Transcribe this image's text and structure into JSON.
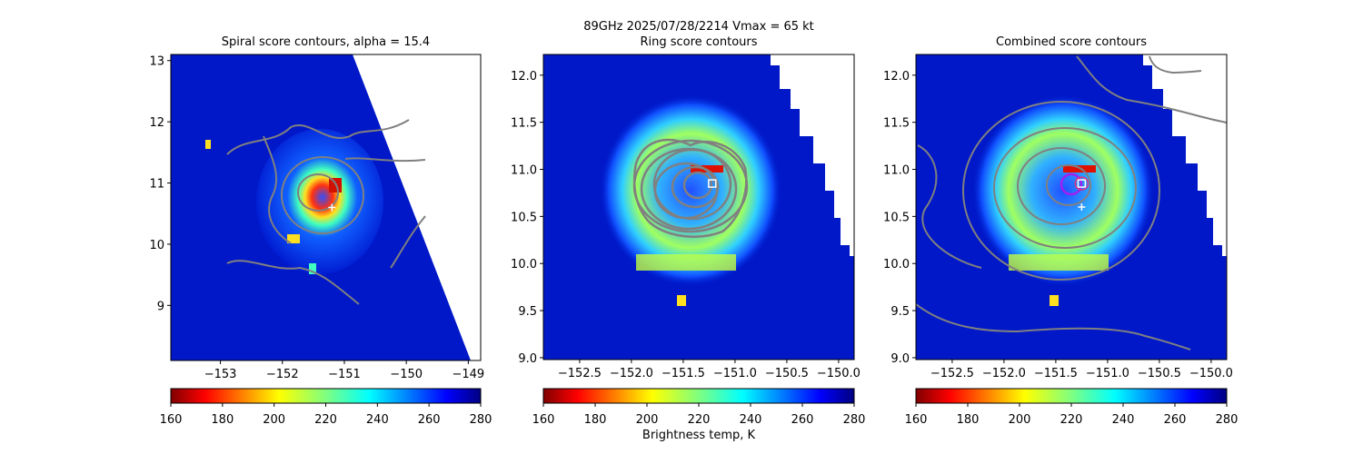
{
  "figure": {
    "suptitle_line1": "89GHz  2025/07/28/2214    Vmax = 65 kt",
    "colorbar_label": "Brightness temp, K"
  },
  "chart_data": [
    {
      "type": "heatmap",
      "title": "Spiral score contours, alpha = 15.4",
      "xlim": [
        -153.8,
        -148.8
      ],
      "ylim": [
        8.1,
        13.1
      ],
      "xticks": [
        -153,
        -152,
        -151,
        -150,
        -149
      ],
      "xtick_labels": [
        "−153",
        "−152",
        "−151",
        "−150",
        "−149"
      ],
      "yticks": [
        9,
        10,
        11,
        12,
        13
      ],
      "ytick_labels": [
        "9",
        "10",
        "11",
        "12",
        "13"
      ],
      "center_markers": [
        {
          "kind": "plus",
          "x": -151.2,
          "y": 10.6
        }
      ],
      "colorbar": {
        "min": 160,
        "max": 280,
        "ticks": [
          160,
          180,
          200,
          220,
          240,
          260,
          280
        ],
        "cmap": "jet"
      }
    },
    {
      "type": "heatmap",
      "title": "Ring score contours",
      "xlim": [
        -152.85,
        -149.85
      ],
      "ylim": [
        8.98,
        12.22
      ],
      "xticks": [
        -152.5,
        -152.0,
        -151.5,
        -151.0,
        -150.5,
        -150.0
      ],
      "xtick_labels": [
        "−152.5",
        "−152.0",
        "−151.5",
        "−151.0",
        "−150.5",
        "−150.0"
      ],
      "yticks": [
        9.0,
        9.5,
        10.0,
        10.5,
        11.0,
        11.5,
        12.0
      ],
      "ytick_labels": [
        "9.0",
        "9.5",
        "10.0",
        "10.5",
        "11.0",
        "11.5",
        "12.0"
      ],
      "center_markers": [
        {
          "kind": "square",
          "x": -151.22,
          "y": 10.85
        }
      ],
      "colorbar": {
        "min": 160,
        "max": 280,
        "ticks": [
          160,
          180,
          200,
          220,
          240,
          260,
          280
        ],
        "cmap": "jet"
      }
    },
    {
      "type": "heatmap",
      "title": "Combined score contours",
      "xlim": [
        -152.85,
        -149.85
      ],
      "ylim": [
        8.98,
        12.22
      ],
      "xticks": [
        -152.5,
        -152.0,
        -151.5,
        -151.0,
        -150.5,
        -150.0
      ],
      "xtick_labels": [
        "−152.5",
        "−152.0",
        "−151.5",
        "−151.0",
        "−150.5",
        "−150.0"
      ],
      "yticks": [
        9.0,
        9.5,
        10.0,
        10.5,
        11.0,
        11.5,
        12.0
      ],
      "ytick_labels": [
        "9.0",
        "9.5",
        "10.0",
        "10.5",
        "11.0",
        "11.5",
        "12.0"
      ],
      "center_markers": [
        {
          "kind": "plus",
          "x": -151.25,
          "y": 10.6
        },
        {
          "kind": "square",
          "x": -151.25,
          "y": 10.85
        },
        {
          "kind": "circle",
          "x": -151.25,
          "y": 10.85
        }
      ],
      "colorbar": {
        "min": 160,
        "max": 280,
        "ticks": [
          160,
          180,
          200,
          220,
          240,
          260,
          280
        ],
        "cmap": "jet"
      }
    }
  ]
}
